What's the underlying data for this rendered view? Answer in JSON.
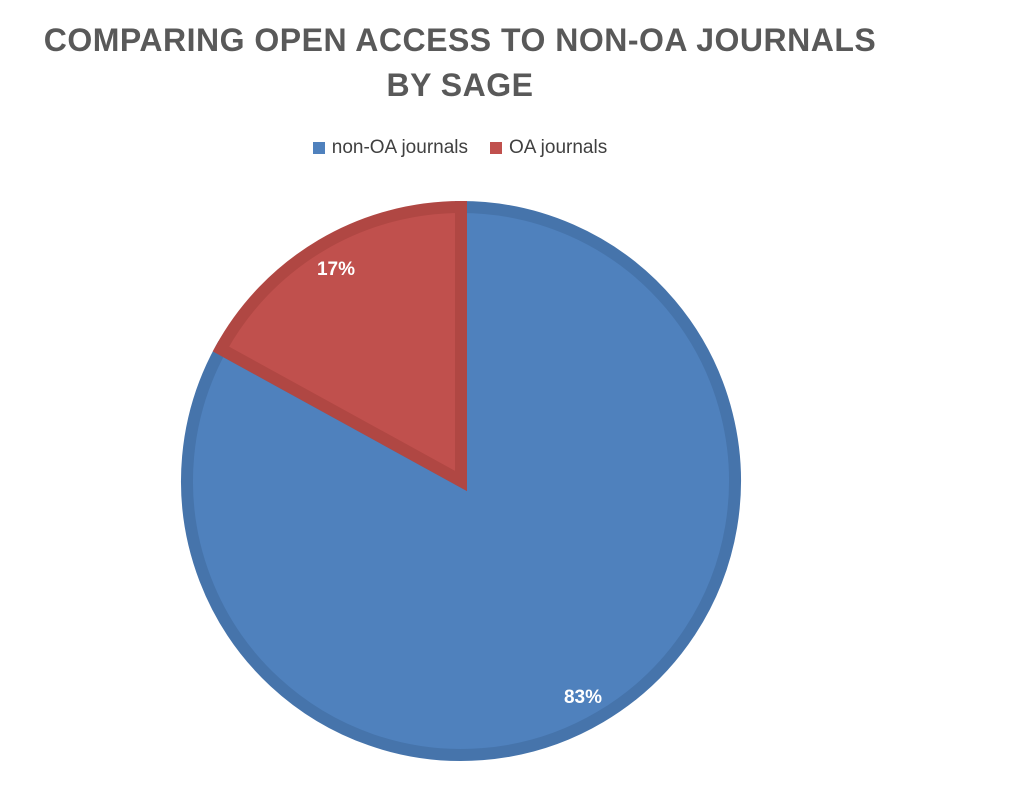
{
  "chart_data": {
    "type": "pie",
    "title_line1": "COMPARING OPEN ACCESS TO NON-OA JOURNALS",
    "title_line2": "BY SAGE",
    "legend_position": "top",
    "slices": [
      {
        "name": "non-OA journals",
        "value": 83,
        "label": "83%",
        "color": "#4f81bd",
        "edge": "#4674ab"
      },
      {
        "name": "OA journals",
        "value": 17,
        "label": "17%",
        "color": "#c0504d",
        "edge": "#b04743"
      }
    ]
  }
}
